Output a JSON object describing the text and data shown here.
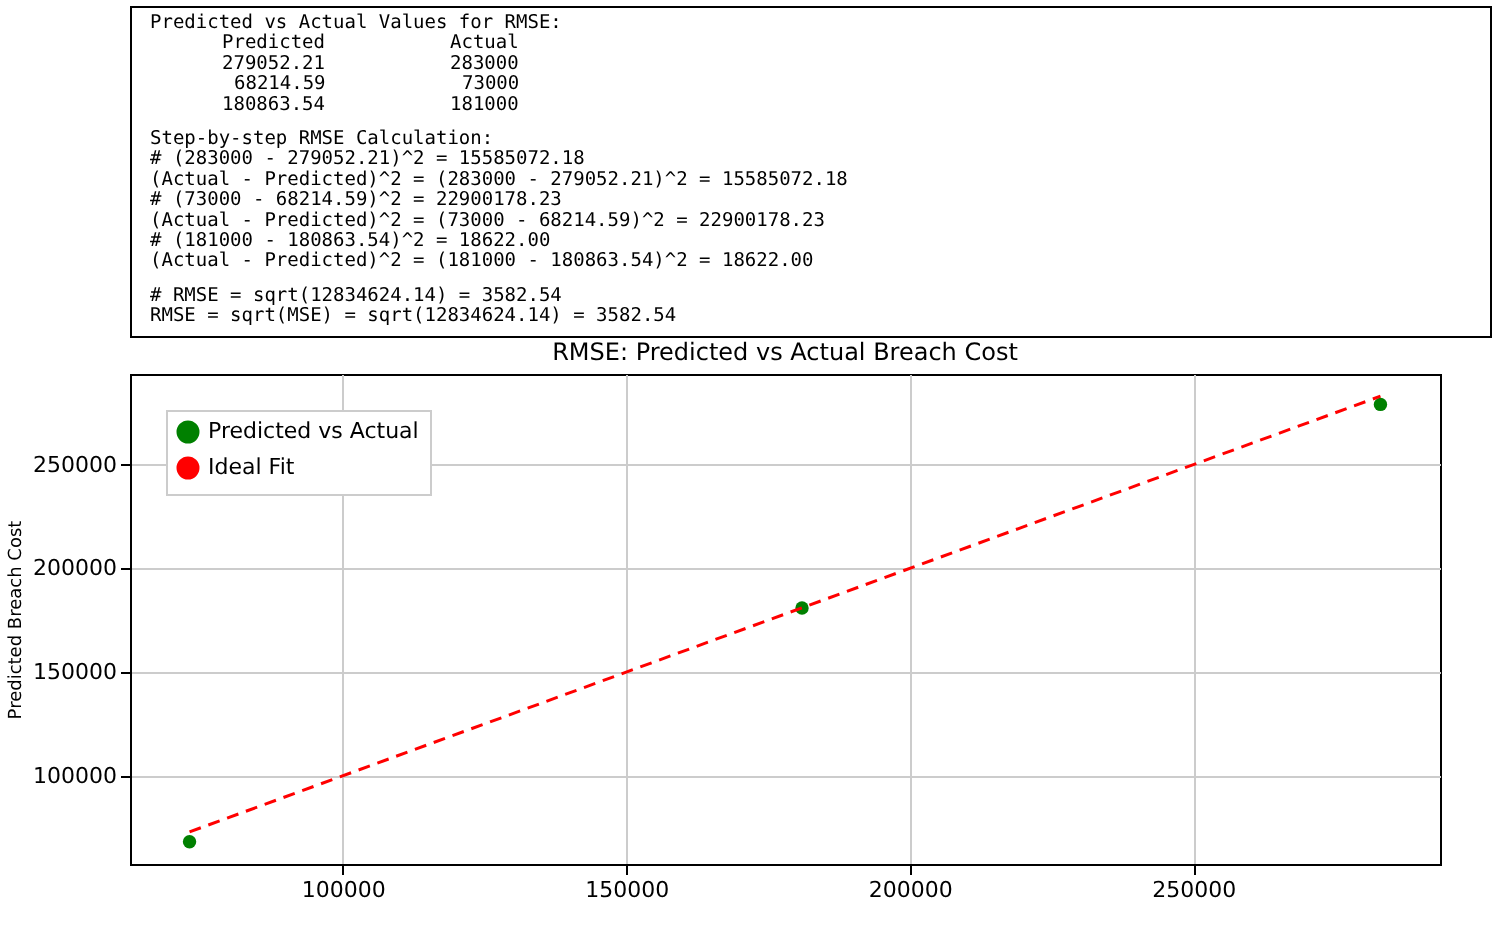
{
  "chart_data": {
    "type": "scatter",
    "title": "RMSE: Predicted vs Actual Breach Cost",
    "ylabel": "Predicted Breach Cost",
    "annotations": [
      "Predicted vs Actual Values for RMSE:",
      "      Predicted          Actual",
      "      279052.21          283000",
      "       68214.59           73000",
      "      180863.54          181000",
      "Step-by-step RMSE Calculation:",
      "# (283000 - 279052.21)^2 = 15585072.18",
      "(Actual - Predicted)^2 = (283000 - 279052.21)^2 = 15585072.18",
      "# (73000 - 68214.59)^2 = 22900178.23",
      "(Actual - Predicted)^2 = (73000 - 68214.59)^2 = 22900178.23",
      "# (181000 - 180863.54)^2 = 18622.00",
      "(Actual - Predicted)^2 = (181000 - 180863.54)^2 = 18622.00",
      "# RMSE = sqrt(12834624.14) = 3582.54",
      "RMSE = sqrt(MSE) = sqrt(12834624.14) = 3582.54"
    ],
    "xlim": [
      62500,
      293500
    ],
    "ylim": [
      57500,
      293700
    ],
    "xticks": [
      100000,
      150000,
      200000,
      250000
    ],
    "yticks": [
      100000,
      150000,
      200000,
      250000
    ],
    "grid": true,
    "legend": "top left",
    "series": [
      {
        "name": "Predicted vs Actual",
        "marker": "circle",
        "color": "#008000",
        "x": [
          283000,
          73000,
          181000
        ],
        "values": [
          279052.21,
          68214.59,
          180863.54
        ]
      },
      {
        "name": "Ideal Fit",
        "type": "line",
        "line_style": "dashed",
        "color": "#ff0000",
        "x": [
          73000,
          283000
        ],
        "values": [
          73000,
          283000
        ]
      }
    ]
  }
}
